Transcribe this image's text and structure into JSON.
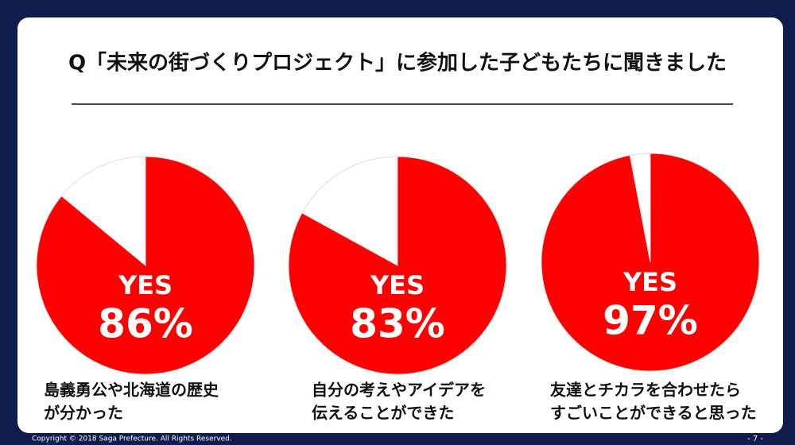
{
  "title": "Q「未来の街づくりプロジェクト」に参加した子どもたちに聞きました",
  "chart_data": [
    {
      "type": "pie",
      "categories": [
        "YES",
        null
      ],
      "values": [
        86,
        14
      ],
      "value_labels": [
        "86%",
        null
      ],
      "colors": [
        "#ff0000",
        "#ffffff"
      ],
      "caption": [
        "島義勇公や北海道の歴史",
        "が分かった"
      ]
    },
    {
      "type": "pie",
      "categories": [
        "YES",
        null
      ],
      "values": [
        83,
        17
      ],
      "value_labels": [
        "83%",
        null
      ],
      "colors": [
        "#ff0000",
        "#ffffff"
      ],
      "caption": [
        "自分の考えやアイデアを",
        "伝えることができた"
      ]
    },
    {
      "type": "pie",
      "categories": [
        "YES",
        null
      ],
      "values": [
        97,
        3
      ],
      "value_labels": [
        "97%",
        null
      ],
      "colors": [
        "#ff0000",
        "#ffffff"
      ],
      "caption": [
        "友達とチカラを合わせたら",
        "すごいことができると思った"
      ]
    }
  ],
  "footer": {
    "copyright": "Copyright © 2018 Saga Prefecture. All Rights Reserved.",
    "page": "- 7 -"
  }
}
